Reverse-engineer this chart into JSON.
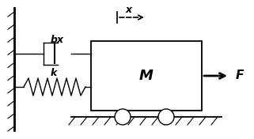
{
  "bg_color": "#ffffff",
  "line_color": "#000000",
  "label_bx": "bx",
  "label_k": "k",
  "label_M": "M",
  "label_F": "F",
  "label_x": "x",
  "fig_width": 3.21,
  "fig_height": 1.76,
  "dpi": 100
}
